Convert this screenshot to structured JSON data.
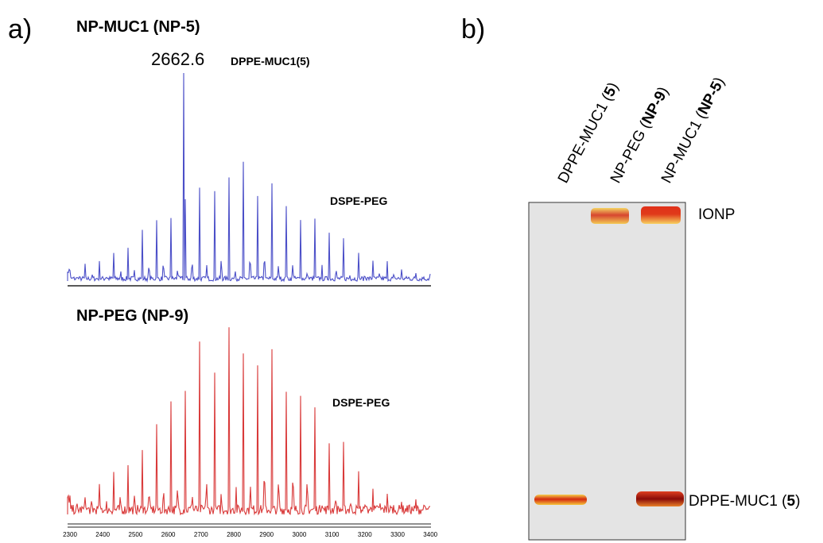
{
  "panel_a": {
    "label": "a)",
    "top": {
      "title": "NP-MUC1 (NP-5)",
      "peak_label": "2662.6",
      "peak_annotation": "DPPE-MUC1(5)",
      "annotation": "DSPE-PEG"
    },
    "bottom": {
      "title": "NP-PEG (NP-9)",
      "annotation": "DSPE-PEG"
    },
    "axis": {
      "ticks": [
        2300,
        2400,
        2500,
        2600,
        2700,
        2800,
        2900,
        3000,
        3100,
        3200,
        3300,
        3400
      ]
    }
  },
  "panel_b": {
    "label": "b)",
    "lanes": [
      {
        "text": "DPPE-MUC1 (",
        "bold": "5",
        "end": ")"
      },
      {
        "text": "NP-PEG (",
        "bold": "NP-9",
        "end": ")"
      },
      {
        "text": "NP-MUC1 (",
        "bold": "NP-5",
        "end": ")"
      }
    ],
    "band_top": "IONP",
    "band_bottom": {
      "text": "DPPE-MUC1 (",
      "bold": "5",
      "end": ")"
    }
  }
}
